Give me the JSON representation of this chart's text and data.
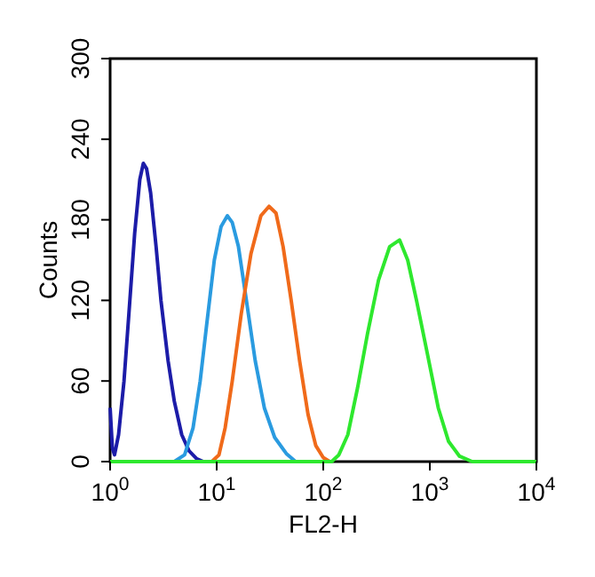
{
  "chart_data": {
    "type": "line",
    "xlabel": "FL2-H",
    "ylabel": "Counts",
    "log": "x",
    "xlim": [
      1,
      10000
    ],
    "ylim": [
      0,
      300
    ],
    "xticks": [
      {
        "value": 1,
        "label": "10$^{0}$"
      },
      {
        "value": 10,
        "label": "10$^{1}$"
      },
      {
        "value": 100,
        "label": "10$^{2}$"
      },
      {
        "value": 1000,
        "label": "10$^{3}$"
      },
      {
        "value": 10000,
        "label": "10$^{4}$"
      }
    ],
    "yticks": [
      0,
      60,
      120,
      180,
      240,
      300
    ],
    "grid": false,
    "marker": "none",
    "line_style": "solid",
    "series": [
      {
        "color": "#1c1ca8",
        "x": [
          1,
          1.05,
          1.1,
          1.2,
          1.35,
          1.5,
          1.7,
          1.9,
          2.05,
          2.2,
          2.4,
          2.7,
          3.0,
          3.5,
          4.0,
          4.7,
          5.5,
          6.5,
          7.5
        ],
        "values": [
          40,
          10,
          5,
          20,
          60,
          110,
          170,
          210,
          222,
          218,
          200,
          160,
          120,
          75,
          45,
          20,
          8,
          2,
          0
        ]
      },
      {
        "color": "#2a9be0",
        "x": [
          4,
          5,
          6,
          7,
          8,
          9.5,
          11,
          12.6,
          14,
          16,
          19,
          23,
          28,
          35,
          45,
          55
        ],
        "values": [
          0,
          5,
          25,
          60,
          100,
          150,
          175,
          183,
          178,
          160,
          120,
          75,
          40,
          18,
          6,
          0
        ]
      },
      {
        "color": "#f06a1a",
        "x": [
          9,
          10.5,
          12,
          14,
          17,
          21,
          26,
          31,
          36,
          42,
          50,
          60,
          72,
          85,
          100,
          115
        ],
        "values": [
          0,
          5,
          25,
          60,
          110,
          155,
          183,
          190,
          185,
          160,
          120,
          75,
          35,
          12,
          3,
          0
        ]
      },
      {
        "color": "#2ee82e",
        "x": [
          1,
          120,
          140,
          170,
          210,
          260,
          330,
          420,
          520,
          620,
          750,
          950,
          1200,
          1500,
          1900,
          2500,
          10000
        ],
        "values": [
          0,
          0,
          5,
          20,
          55,
          95,
          135,
          160,
          165,
          150,
          120,
          80,
          40,
          15,
          4,
          0,
          0
        ]
      }
    ]
  }
}
